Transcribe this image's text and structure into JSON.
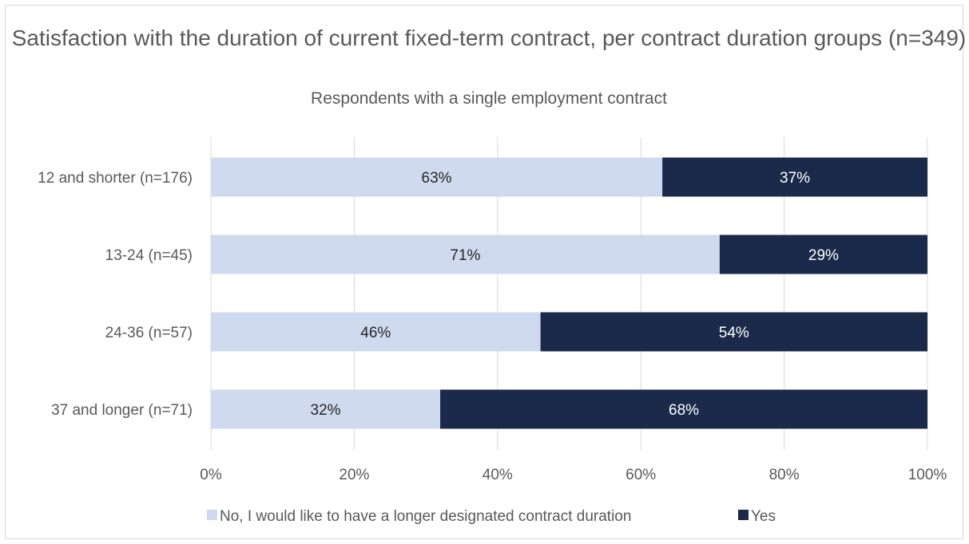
{
  "chart_data": {
    "type": "bar",
    "orientation": "horizontal",
    "stacked": "percent",
    "title": "Satisfaction with the duration of current fixed-term contract, per contract duration groups (n=349)",
    "subtitle": "Respondents with a single employment contract",
    "categories": [
      "12 and shorter (n=176)",
      "13-24 (n=45)",
      "24-36 (n=57)",
      "37 and longer (n=71)"
    ],
    "series": [
      {
        "name": "No, I would like to have a longer designated contract duration",
        "values": [
          63,
          71,
          46,
          32
        ],
        "color": "#cfdaee",
        "label_color": "#262626"
      },
      {
        "name": "Yes",
        "values": [
          37,
          29,
          54,
          68
        ],
        "color": "#1b2a4a",
        "label_color": "#ffffff"
      }
    ],
    "data_labels": [
      [
        "63%",
        "71%",
        "46%",
        "32%"
      ],
      [
        "37%",
        "29%",
        "54%",
        "68%"
      ]
    ],
    "xlim": [
      0,
      100
    ],
    "x_ticks": [
      "0%",
      "20%",
      "40%",
      "60%",
      "80%",
      "100%"
    ],
    "grid": true,
    "legend_position": "bottom"
  }
}
